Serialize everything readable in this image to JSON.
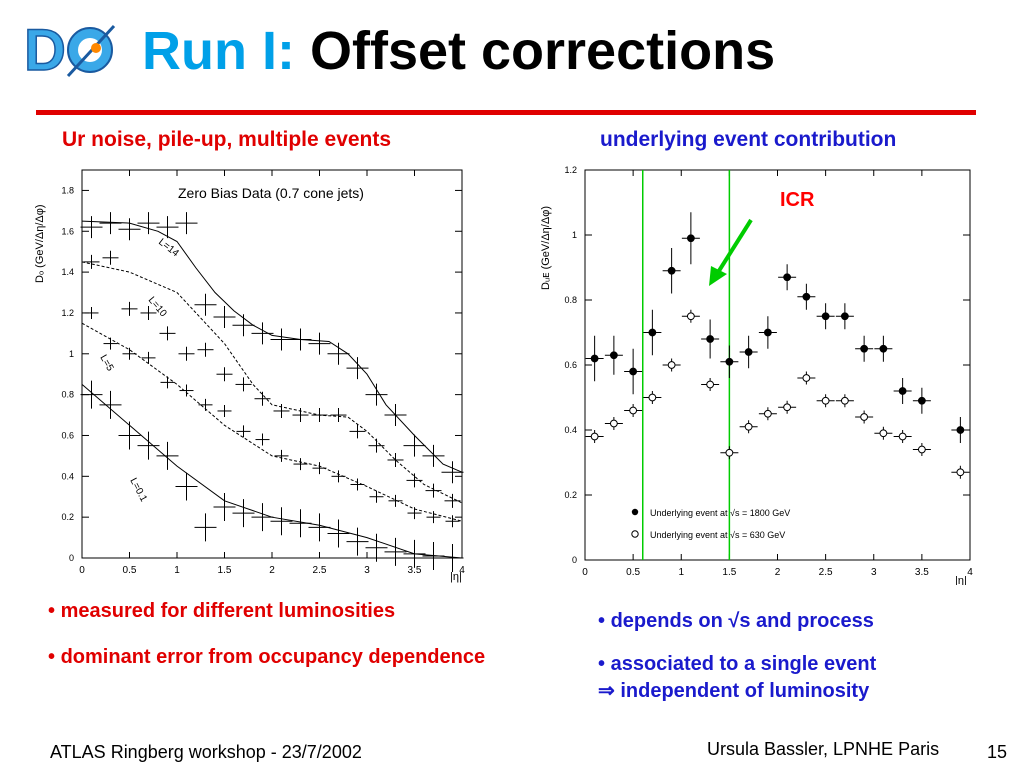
{
  "logo": {
    "text": "DØ"
  },
  "header": {
    "title_prefix": "Run I:",
    "title_main": "Offset corrections",
    "accent_color": "#00a0e8",
    "rule_color": "#e00000"
  },
  "left_panel": {
    "heading": "Ur noise, pile-up, multiple events",
    "bullets": [
      "measured for different luminosities",
      "dominant error from occupancy dependence"
    ]
  },
  "right_panel": {
    "heading": "underlying event contribution",
    "bullets": [
      "depends on √s and process",
      "associated to a single event"
    ],
    "implication": "independent of luminosity"
  },
  "footer": {
    "left": "ATLAS Ringberg workshop - 23/7/2002",
    "right": "Ursula Bassler, LPNHE Paris",
    "page": "15"
  },
  "chart_data": [
    {
      "type": "line",
      "title": "Zero Bias Data (0.7 cone jets)",
      "xlabel": "|η|",
      "ylabel": "Dₒ (GeV/Δη/Δφ)",
      "xlim": [
        0,
        4
      ],
      "ylim": [
        0,
        1.9
      ],
      "xticks": [
        0,
        0.5,
        1,
        1.5,
        2,
        2.5,
        3,
        3.5,
        4
      ],
      "xtick_labels": [
        "0",
        "0.5",
        "1",
        "1.5",
        "2",
        "2.5",
        "3",
        "3.5",
        "4"
      ],
      "yticks": [
        0,
        0.2,
        0.4,
        0.6,
        0.8,
        1,
        1.2,
        1.4,
        1.6,
        1.8
      ],
      "ytick_labels": [
        "0",
        "0.2",
        "0.4",
        "0.6",
        "0.8",
        "1",
        "1.2",
        "1.4",
        "1.6",
        "1.8"
      ],
      "series": [
        {
          "name": "L=14",
          "style": "solid",
          "x": [
            0.1,
            0.3,
            0.5,
            0.7,
            0.9,
            1.1,
            1.3,
            1.5,
            1.7,
            1.9,
            2.1,
            2.3,
            2.5,
            2.7,
            2.9,
            3.1,
            3.3,
            3.5,
            3.7,
            3.9
          ],
          "y": [
            1.62,
            1.64,
            1.61,
            1.64,
            1.62,
            1.64,
            1.24,
            1.18,
            1.14,
            1.1,
            1.07,
            1.07,
            1.05,
            1.0,
            0.93,
            0.8,
            0.7,
            0.55,
            0.5,
            0.42
          ],
          "curve_x": [
            0,
            0.5,
            0.8,
            1.0,
            1.2,
            1.4,
            1.6,
            1.8,
            2.0,
            2.3,
            2.6,
            2.8,
            3.0,
            3.2,
            3.5,
            3.8,
            4.0
          ],
          "curve_y": [
            1.65,
            1.64,
            1.6,
            1.55,
            1.42,
            1.3,
            1.21,
            1.14,
            1.09,
            1.07,
            1.06,
            1.0,
            0.9,
            0.75,
            0.6,
            0.46,
            0.42
          ]
        },
        {
          "name": "L=10",
          "style": "dashed",
          "x": [
            0.1,
            0.3,
            0.5,
            0.7,
            0.9,
            1.1,
            1.3,
            1.5,
            1.7,
            1.9,
            2.1,
            2.3,
            2.5,
            2.7,
            2.9,
            3.1,
            3.3,
            3.5,
            3.7,
            3.9
          ],
          "y": [
            1.45,
            1.47,
            1.22,
            1.2,
            1.1,
            1.0,
            1.02,
            0.9,
            0.85,
            0.78,
            0.72,
            0.7,
            0.7,
            0.7,
            0.62,
            0.55,
            0.48,
            0.38,
            0.33,
            0.28
          ],
          "curve_x": [
            0,
            0.5,
            1.0,
            1.5,
            1.8,
            2.0,
            2.5,
            2.8,
            3.0,
            3.3,
            3.6,
            4.0
          ],
          "curve_y": [
            1.45,
            1.4,
            1.3,
            1.05,
            0.85,
            0.75,
            0.7,
            0.69,
            0.62,
            0.48,
            0.36,
            0.27
          ]
        },
        {
          "name": "L=5",
          "style": "dashed",
          "x": [
            0.1,
            0.3,
            0.5,
            0.7,
            0.9,
            1.1,
            1.3,
            1.5,
            1.7,
            1.9,
            2.1,
            2.3,
            2.5,
            2.7,
            2.9,
            3.1,
            3.3,
            3.5,
            3.7,
            3.9
          ],
          "y": [
            1.2,
            1.05,
            1.0,
            0.98,
            0.86,
            0.82,
            0.75,
            0.72,
            0.62,
            0.58,
            0.5,
            0.46,
            0.44,
            0.4,
            0.36,
            0.3,
            0.28,
            0.22,
            0.2,
            0.18
          ],
          "curve_x": [
            0,
            0.5,
            1.0,
            1.5,
            2.0,
            2.5,
            3.0,
            3.5,
            4.0
          ],
          "curve_y": [
            1.15,
            1.02,
            0.85,
            0.65,
            0.5,
            0.45,
            0.35,
            0.24,
            0.18
          ]
        },
        {
          "name": "L=0.1",
          "style": "solid",
          "x": [
            0.1,
            0.3,
            0.5,
            0.7,
            0.9,
            1.1,
            1.3,
            1.5,
            1.7,
            1.9,
            2.1,
            2.3,
            2.5,
            2.7,
            2.9,
            3.1,
            3.3,
            3.5,
            3.7,
            3.9
          ],
          "y": [
            0.8,
            0.75,
            0.6,
            0.55,
            0.5,
            0.35,
            0.15,
            0.25,
            0.22,
            0.2,
            0.18,
            0.17,
            0.15,
            0.12,
            0.08,
            0.05,
            0.03,
            0.02,
            0.01,
            0.0
          ],
          "curve_x": [
            0,
            0.5,
            1.0,
            1.5,
            2.0,
            2.5,
            3.0,
            3.5,
            4.0
          ],
          "curve_y": [
            0.85,
            0.65,
            0.45,
            0.28,
            0.2,
            0.16,
            0.1,
            0.02,
            0.0
          ]
        }
      ],
      "grid": false
    },
    {
      "type": "scatter",
      "xlabel": "|η|",
      "ylabel": "Dᵤᴇ (GeV/Δη/Δφ)",
      "xlim": [
        0,
        4
      ],
      "ylim": [
        0,
        1.2
      ],
      "xticks": [
        0,
        0.5,
        1,
        1.5,
        2,
        2.5,
        3,
        3.5,
        4
      ],
      "xtick_labels": [
        "0",
        "0.5",
        "1",
        "1.5",
        "2",
        "2.5",
        "3",
        "3.5",
        "4"
      ],
      "yticks": [
        0,
        0.2,
        0.4,
        0.6,
        0.8,
        1,
        1.2
      ],
      "ytick_labels": [
        "0",
        "0.2",
        "0.4",
        "0.6",
        "0.8",
        "1",
        "1.2"
      ],
      "vlines": [
        0.6,
        1.5
      ],
      "annotation": {
        "text": "ICR",
        "color": "#ff0000",
        "arrow_color": "#00cc00"
      },
      "series": [
        {
          "name": "Underlying event at √s = 1800 GeV",
          "marker": "filled",
          "x": [
            0.1,
            0.3,
            0.5,
            0.7,
            0.9,
            1.1,
            1.3,
            1.5,
            1.7,
            1.9,
            2.1,
            2.3,
            2.5,
            2.7,
            2.9,
            3.1,
            3.3,
            3.5,
            3.9
          ],
          "y": [
            0.62,
            0.63,
            0.58,
            0.7,
            0.89,
            0.99,
            0.68,
            0.61,
            0.64,
            0.7,
            0.87,
            0.81,
            0.75,
            0.75,
            0.65,
            0.65,
            0.52,
            0.49,
            0.4
          ],
          "err": [
            0.07,
            0.06,
            0.07,
            0.07,
            0.07,
            0.08,
            0.06,
            0.05,
            0.05,
            0.05,
            0.04,
            0.04,
            0.04,
            0.04,
            0.04,
            0.04,
            0.04,
            0.04,
            0.04
          ]
        },
        {
          "name": "Underlying event at √s = 630 GeV",
          "marker": "open",
          "x": [
            0.1,
            0.3,
            0.5,
            0.7,
            0.9,
            1.1,
            1.3,
            1.5,
            1.7,
            1.9,
            2.1,
            2.3,
            2.5,
            2.7,
            2.9,
            3.1,
            3.3,
            3.5,
            3.9
          ],
          "y": [
            0.38,
            0.42,
            0.46,
            0.5,
            0.6,
            0.75,
            0.54,
            0.33,
            0.41,
            0.45,
            0.47,
            0.56,
            0.49,
            0.49,
            0.44,
            0.39,
            0.38,
            0.34,
            0.27
          ],
          "err": [
            0.02,
            0.02,
            0.02,
            0.02,
            0.02,
            0.02,
            0.02,
            0.02,
            0.02,
            0.02,
            0.02,
            0.02,
            0.02,
            0.02,
            0.02,
            0.02,
            0.02,
            0.02,
            0.02
          ]
        }
      ],
      "grid": false
    }
  ]
}
